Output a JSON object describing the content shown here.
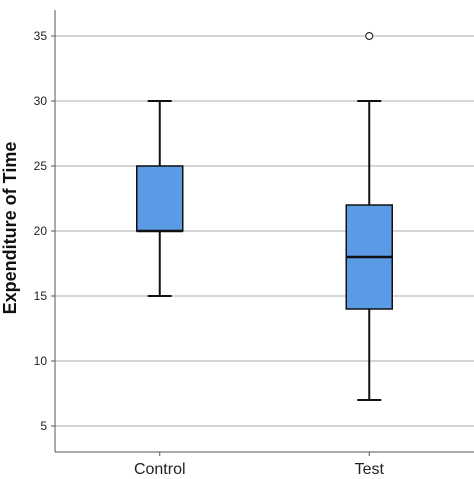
{
  "chart_data": {
    "type": "box",
    "title": "",
    "xlabel": "",
    "ylabel": "Expenditure of Time",
    "ylim": [
      3,
      37
    ],
    "yticks": [
      5,
      10,
      15,
      20,
      25,
      30,
      35
    ],
    "grid": true,
    "categories": [
      "Control",
      "Test"
    ],
    "boxes": [
      {
        "category": "Control",
        "whisker_low": 15,
        "q1": 20,
        "median": 20,
        "q3": 25,
        "whisker_high": 30,
        "outliers": []
      },
      {
        "category": "Test",
        "whisker_low": 7,
        "q1": 14,
        "median": 18,
        "q3": 22,
        "whisker_high": 30,
        "outliers": [
          35
        ]
      }
    ],
    "box_color": "#5b9be6",
    "grid_color": "#c8c8c8",
    "axis_color": "#555555"
  }
}
